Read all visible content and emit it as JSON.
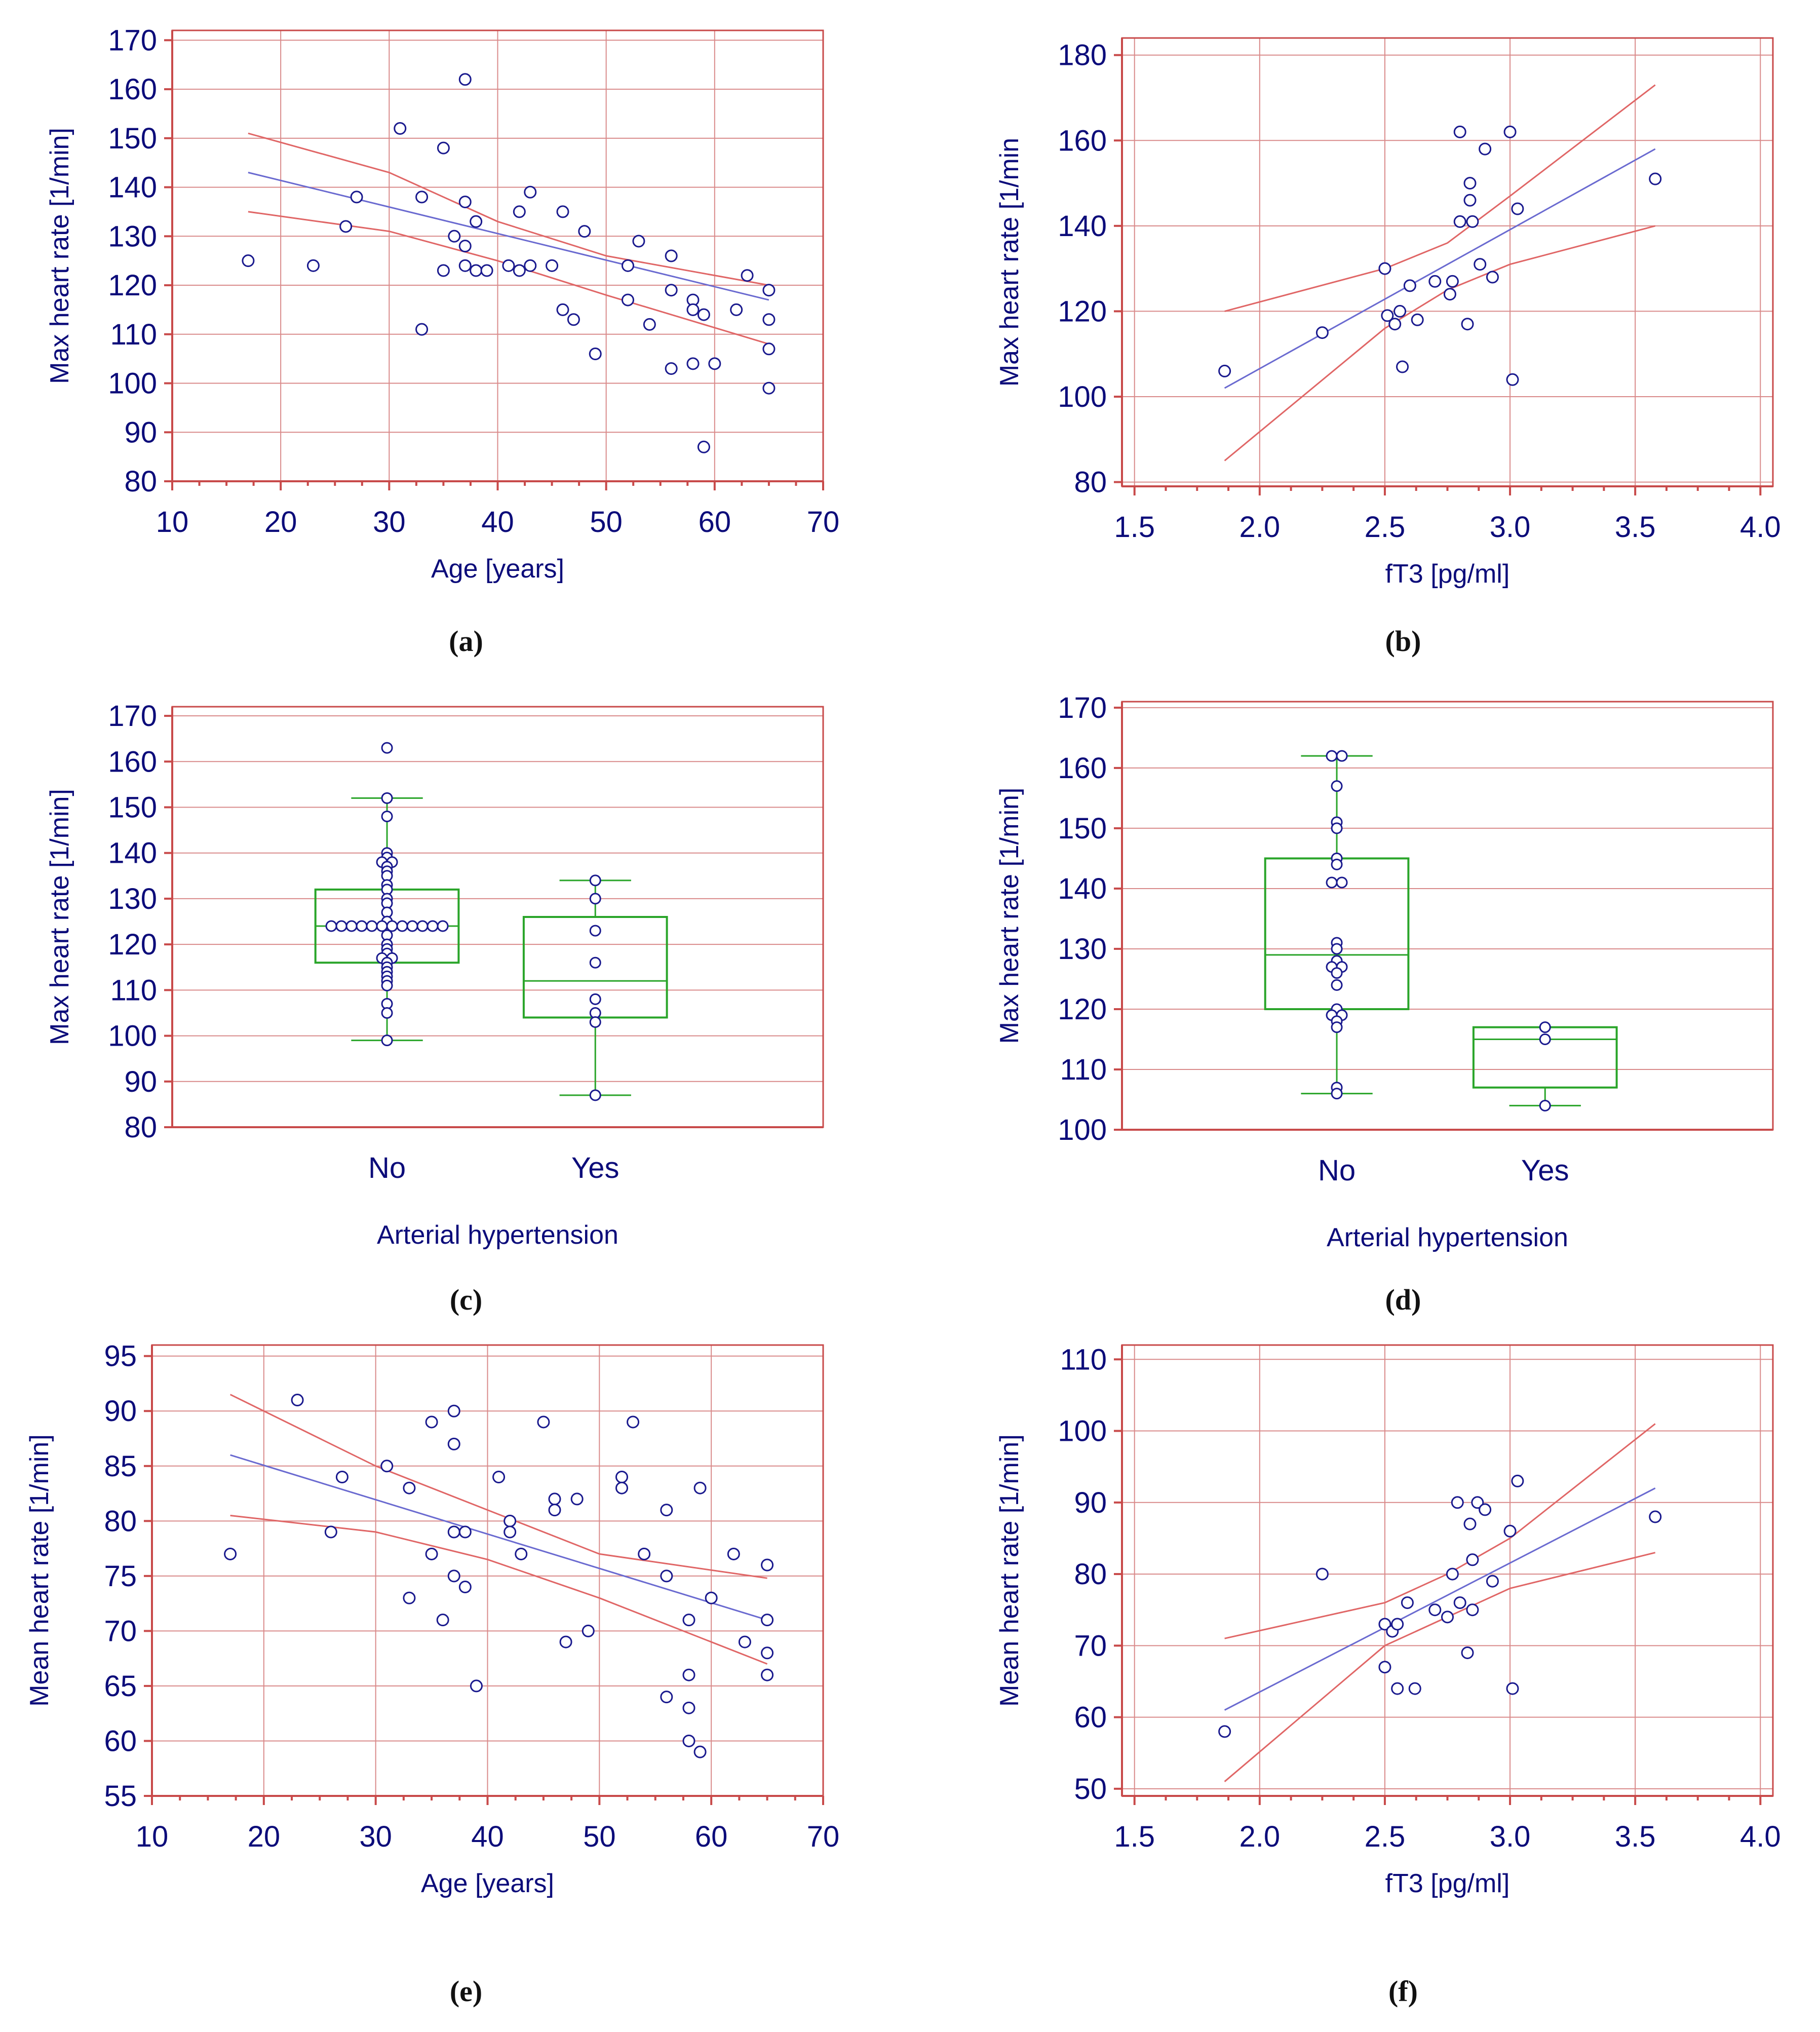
{
  "colors": {
    "grid": "#d98a8a",
    "frame": "#c84a4a",
    "ci_band": "#e06666",
    "fit_line": "#6a6ad0",
    "points": "#1a1a8e",
    "box": "#2aa52a",
    "text": "#0c0c7a"
  },
  "chart_data": [
    {
      "id": "a",
      "caption": "(a)",
      "type": "scatter",
      "xlabel": "Age [years]",
      "ylabel": "Max heart rate [1/min]",
      "xlim": [
        10,
        70
      ],
      "ylim": [
        80,
        172
      ],
      "xticks": [
        10,
        20,
        30,
        40,
        50,
        60,
        70
      ],
      "yticks": [
        80,
        90,
        100,
        110,
        120,
        130,
        140,
        150,
        160,
        170
      ],
      "points": [
        [
          17,
          125
        ],
        [
          23,
          124
        ],
        [
          26,
          132
        ],
        [
          27,
          138
        ],
        [
          31,
          152
        ],
        [
          33,
          138
        ],
        [
          33,
          111
        ],
        [
          35,
          148
        ],
        [
          35,
          123
        ],
        [
          36,
          130
        ],
        [
          37,
          162
        ],
        [
          37,
          137
        ],
        [
          37,
          128
        ],
        [
          37,
          124
        ],
        [
          38,
          133
        ],
        [
          38,
          123
        ],
        [
          39,
          123
        ],
        [
          41,
          124
        ],
        [
          42,
          123
        ],
        [
          42,
          135
        ],
        [
          43,
          139
        ],
        [
          43,
          124
        ],
        [
          45,
          124
        ],
        [
          46,
          135
        ],
        [
          46,
          115
        ],
        [
          47,
          113
        ],
        [
          48,
          131
        ],
        [
          49,
          106
        ],
        [
          52,
          124
        ],
        [
          52,
          117
        ],
        [
          53,
          129
        ],
        [
          54,
          112
        ],
        [
          56,
          126
        ],
        [
          56,
          119
        ],
        [
          56,
          103
        ],
        [
          58,
          117
        ],
        [
          58,
          115
        ],
        [
          58,
          104
        ],
        [
          59,
          114
        ],
        [
          59,
          87
        ],
        [
          60,
          104
        ],
        [
          62,
          115
        ],
        [
          63,
          122
        ],
        [
          65,
          119
        ],
        [
          65,
          113
        ],
        [
          65,
          107
        ],
        [
          65,
          99
        ]
      ],
      "fit": [
        [
          17,
          143
        ],
        [
          65,
          117
        ]
      ],
      "ci_upper": [
        [
          17,
          151
        ],
        [
          30,
          143
        ],
        [
          40,
          133
        ],
        [
          50,
          126
        ],
        [
          65,
          120
        ]
      ],
      "ci_lower": [
        [
          17,
          135
        ],
        [
          30,
          131
        ],
        [
          40,
          125
        ],
        [
          50,
          118
        ],
        [
          65,
          108
        ]
      ]
    },
    {
      "id": "b",
      "caption": "(b)",
      "type": "scatter",
      "xlabel": "fT3 [pg/ml]",
      "ylabel": "Max heart rate [1/min",
      "xlim": [
        1.45,
        4.05
      ],
      "ylim": [
        79,
        184
      ],
      "xticks": [
        1.5,
        2.0,
        2.5,
        3.0,
        3.5,
        4.0
      ],
      "xtick_labels": [
        "1.5",
        "2.0",
        "2.5",
        "3.0",
        "3.5",
        "4.0"
      ],
      "yticks": [
        80,
        100,
        120,
        140,
        160,
        180
      ],
      "points": [
        [
          1.86,
          106
        ],
        [
          2.25,
          115
        ],
        [
          2.5,
          130
        ],
        [
          2.51,
          119
        ],
        [
          2.54,
          117
        ],
        [
          2.56,
          120
        ],
        [
          2.57,
          107
        ],
        [
          2.6,
          126
        ],
        [
          2.63,
          118
        ],
        [
          2.7,
          127
        ],
        [
          2.76,
          124
        ],
        [
          2.77,
          127
        ],
        [
          2.8,
          162
        ],
        [
          2.8,
          141
        ],
        [
          2.83,
          117
        ],
        [
          2.84,
          150
        ],
        [
          2.84,
          146
        ],
        [
          2.85,
          141
        ],
        [
          2.88,
          131
        ],
        [
          2.9,
          158
        ],
        [
          2.93,
          128
        ],
        [
          3.0,
          162
        ],
        [
          3.01,
          104
        ],
        [
          3.03,
          144
        ],
        [
          3.58,
          151
        ]
      ],
      "fit": [
        [
          1.86,
          102
        ],
        [
          3.58,
          158
        ]
      ],
      "ci_upper": [
        [
          1.86,
          120
        ],
        [
          2.5,
          130
        ],
        [
          2.75,
          136
        ],
        [
          3.0,
          147
        ],
        [
          3.58,
          173
        ]
      ],
      "ci_lower": [
        [
          1.86,
          85
        ],
        [
          2.5,
          116
        ],
        [
          2.75,
          125
        ],
        [
          3.0,
          131
        ],
        [
          3.58,
          140
        ]
      ]
    },
    {
      "id": "c",
      "caption": "(c)",
      "type": "box",
      "xlabel": "Arterial hypertension",
      "ylabel": "Max heart rate [1/min]",
      "ylim": [
        80,
        172
      ],
      "yticks": [
        80,
        90,
        100,
        110,
        120,
        130,
        140,
        150,
        160,
        170
      ],
      "categories": [
        "No",
        "Yes"
      ],
      "boxes": [
        {
          "category": "No",
          "whisker_low": 99,
          "q1": 116,
          "median": 124,
          "q3": 132,
          "whisker_high": 152,
          "points": [
            163,
            152,
            148,
            140,
            139,
            138,
            138,
            137,
            136,
            135,
            133,
            132,
            130,
            129,
            127,
            125,
            124,
            124,
            124,
            124,
            124,
            124,
            124,
            124,
            124,
            124,
            124,
            124,
            122,
            120,
            119,
            118,
            117,
            117,
            116,
            115,
            114,
            113,
            112,
            111,
            107,
            105,
            99
          ]
        },
        {
          "category": "Yes",
          "whisker_low": 87,
          "q1": 104,
          "median": 112,
          "q3": 126,
          "whisker_high": 134,
          "points": [
            134,
            130,
            123,
            116,
            108,
            105,
            103,
            87
          ]
        }
      ]
    },
    {
      "id": "d",
      "caption": "(d)",
      "type": "box",
      "xlabel": "Arterial hypertension",
      "ylabel": "Max heart rate [1/min]",
      "ylim": [
        100,
        171
      ],
      "yticks": [
        100,
        110,
        120,
        130,
        140,
        150,
        160,
        170
      ],
      "categories": [
        "No",
        "Yes"
      ],
      "boxes": [
        {
          "category": "No",
          "whisker_low": 106,
          "q1": 120,
          "median": 129,
          "q3": 145,
          "whisker_high": 162,
          "points": [
            162,
            162,
            157,
            151,
            150,
            145,
            144,
            141,
            141,
            131,
            130,
            128,
            127,
            127,
            126,
            124,
            120,
            119,
            119,
            118,
            117,
            107,
            106
          ]
        },
        {
          "category": "Yes",
          "whisker_low": 104,
          "q1": 107,
          "median": 115,
          "q3": 117,
          "whisker_high": 117,
          "points": [
            117,
            115,
            104
          ]
        }
      ]
    },
    {
      "id": "e",
      "caption": "(e)",
      "type": "scatter",
      "xlabel": "Age [years]",
      "ylabel": "Mean heart rate [1/min]",
      "xlim": [
        10,
        70
      ],
      "ylim": [
        55,
        96
      ],
      "xticks": [
        10,
        20,
        30,
        40,
        50,
        60,
        70
      ],
      "yticks": [
        55,
        60,
        65,
        70,
        75,
        80,
        85,
        90,
        95
      ],
      "points": [
        [
          17,
          77
        ],
        [
          23,
          91
        ],
        [
          26,
          79
        ],
        [
          27,
          84
        ],
        [
          31,
          85
        ],
        [
          33,
          83
        ],
        [
          33,
          73
        ],
        [
          35,
          89
        ],
        [
          35,
          77
        ],
        [
          36,
          71
        ],
        [
          37,
          90
        ],
        [
          37,
          87
        ],
        [
          37,
          79
        ],
        [
          37,
          75
        ],
        [
          38,
          79
        ],
        [
          38,
          74
        ],
        [
          39,
          65
        ],
        [
          41,
          84
        ],
        [
          42,
          80
        ],
        [
          42,
          79
        ],
        [
          43,
          77
        ],
        [
          45,
          89
        ],
        [
          46,
          82
        ],
        [
          46,
          81
        ],
        [
          47,
          69
        ],
        [
          48,
          82
        ],
        [
          49,
          70
        ],
        [
          52,
          84
        ],
        [
          52,
          83
        ],
        [
          53,
          89
        ],
        [
          54,
          77
        ],
        [
          56,
          81
        ],
        [
          56,
          75
        ],
        [
          56,
          64
        ],
        [
          58,
          71
        ],
        [
          58,
          66
        ],
        [
          58,
          63
        ],
        [
          58,
          60
        ],
        [
          59,
          83
        ],
        [
          59,
          59
        ],
        [
          60,
          73
        ],
        [
          62,
          77
        ],
        [
          63,
          69
        ],
        [
          65,
          76
        ],
        [
          65,
          71
        ],
        [
          65,
          68
        ],
        [
          65,
          66
        ]
      ],
      "fit": [
        [
          17,
          86
        ],
        [
          65,
          71
        ]
      ],
      "ci_upper": [
        [
          17,
          91.5
        ],
        [
          30,
          85
        ],
        [
          40,
          81
        ],
        [
          50,
          77
        ],
        [
          65,
          74.8
        ]
      ],
      "ci_lower": [
        [
          17,
          80.5
        ],
        [
          30,
          79
        ],
        [
          40,
          76.5
        ],
        [
          50,
          73
        ],
        [
          65,
          67
        ]
      ]
    },
    {
      "id": "f",
      "caption": "(f)",
      "type": "scatter",
      "xlabel": "fT3 [pg/ml]",
      "ylabel": "Mean heart rate [1/min]",
      "xlim": [
        1.45,
        4.05
      ],
      "ylim": [
        49,
        112
      ],
      "xticks": [
        1.5,
        2.0,
        2.5,
        3.0,
        3.5,
        4.0
      ],
      "xtick_labels": [
        "1.5",
        "2.0",
        "2.5",
        "3.0",
        "3.5",
        "4.0"
      ],
      "yticks": [
        50,
        60,
        70,
        80,
        90,
        100,
        110
      ],
      "points": [
        [
          1.86,
          58
        ],
        [
          2.25,
          80
        ],
        [
          2.5,
          73
        ],
        [
          2.5,
          67
        ],
        [
          2.53,
          72
        ],
        [
          2.55,
          73
        ],
        [
          2.55,
          64
        ],
        [
          2.59,
          76
        ],
        [
          2.62,
          64
        ],
        [
          2.7,
          75
        ],
        [
          2.75,
          74
        ],
        [
          2.77,
          80
        ],
        [
          2.79,
          90
        ],
        [
          2.8,
          76
        ],
        [
          2.83,
          69
        ],
        [
          2.84,
          87
        ],
        [
          2.85,
          82
        ],
        [
          2.85,
          75
        ],
        [
          2.87,
          90
        ],
        [
          2.9,
          89
        ],
        [
          2.93,
          79
        ],
        [
          3.0,
          86
        ],
        [
          3.01,
          64
        ],
        [
          3.03,
          93
        ],
        [
          3.58,
          88
        ]
      ],
      "fit": [
        [
          1.86,
          61
        ],
        [
          3.58,
          92
        ]
      ],
      "ci_upper": [
        [
          1.86,
          71
        ],
        [
          2.5,
          76
        ],
        [
          2.75,
          80
        ],
        [
          3.0,
          85
        ],
        [
          3.58,
          101
        ]
      ],
      "ci_lower": [
        [
          1.86,
          51
        ],
        [
          2.5,
          70
        ],
        [
          2.75,
          74
        ],
        [
          3.0,
          78
        ],
        [
          3.58,
          83
        ]
      ]
    }
  ]
}
